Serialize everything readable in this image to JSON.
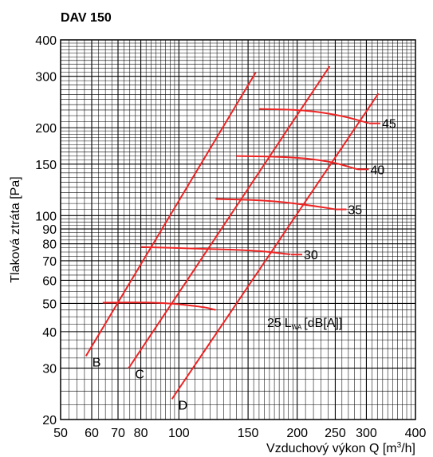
{
  "chart_data": {
    "type": "line",
    "title": "DAV 150",
    "xlabel": "Vzduchový výkon Q [m³/h]",
    "xlabel_parts": {
      "main": "Vzduchový výkon Q [m",
      "sup": "3",
      "tail": "/h]"
    },
    "ylabel": "Tlaková ztráta [Pa]",
    "x_scale": "log",
    "y_scale": "log",
    "xlim": [
      50,
      400
    ],
    "ylim": [
      20,
      400
    ],
    "x_ticks": [
      50,
      60,
      70,
      80,
      100,
      150,
      200,
      250,
      300,
      400
    ],
    "y_ticks": [
      20,
      30,
      40,
      50,
      60,
      70,
      80,
      90,
      100,
      150,
      200,
      300,
      400
    ],
    "grid": true,
    "legend_text": {
      "prefix": "25",
      "main": "L",
      "sub": "WA",
      "suffix": "[dB[A]]"
    },
    "series": [
      {
        "name": "B",
        "type": "damper",
        "points": [
          [
            58,
            33
          ],
          [
            157,
            310
          ]
        ]
      },
      {
        "name": "C",
        "type": "damper",
        "points": [
          [
            74.5,
            30
          ],
          [
            242,
            325
          ]
        ]
      },
      {
        "name": "D",
        "type": "damper",
        "points": [
          [
            96,
            23.5
          ],
          [
            322,
            262
          ]
        ]
      }
    ],
    "noise_curves": [
      {
        "name": "25",
        "points": [
          [
            64,
            50.3
          ],
          [
            90,
            50.4
          ],
          [
            115,
            48.7
          ],
          [
            124,
            47.5
          ]
        ]
      },
      {
        "name": "30",
        "points": [
          [
            80,
            78
          ],
          [
            115,
            77
          ],
          [
            160,
            75.8
          ],
          [
            193,
            73.5
          ]
        ]
      },
      {
        "name": "35",
        "points": [
          [
            124,
            114
          ],
          [
            165,
            113
          ],
          [
            210,
            109
          ],
          [
            250,
            105
          ]
        ]
      },
      {
        "name": "40",
        "points": [
          [
            140,
            160
          ],
          [
            190,
            159
          ],
          [
            240,
            154
          ],
          [
            285,
            144
          ]
        ]
      },
      {
        "name": "45",
        "points": [
          [
            160,
            232
          ],
          [
            210,
            230
          ],
          [
            260,
            220
          ],
          [
            305,
            207
          ]
        ]
      }
    ],
    "colors": {
      "curves": "#ee2424",
      "grid": "#000000",
      "text": "#000000"
    }
  }
}
